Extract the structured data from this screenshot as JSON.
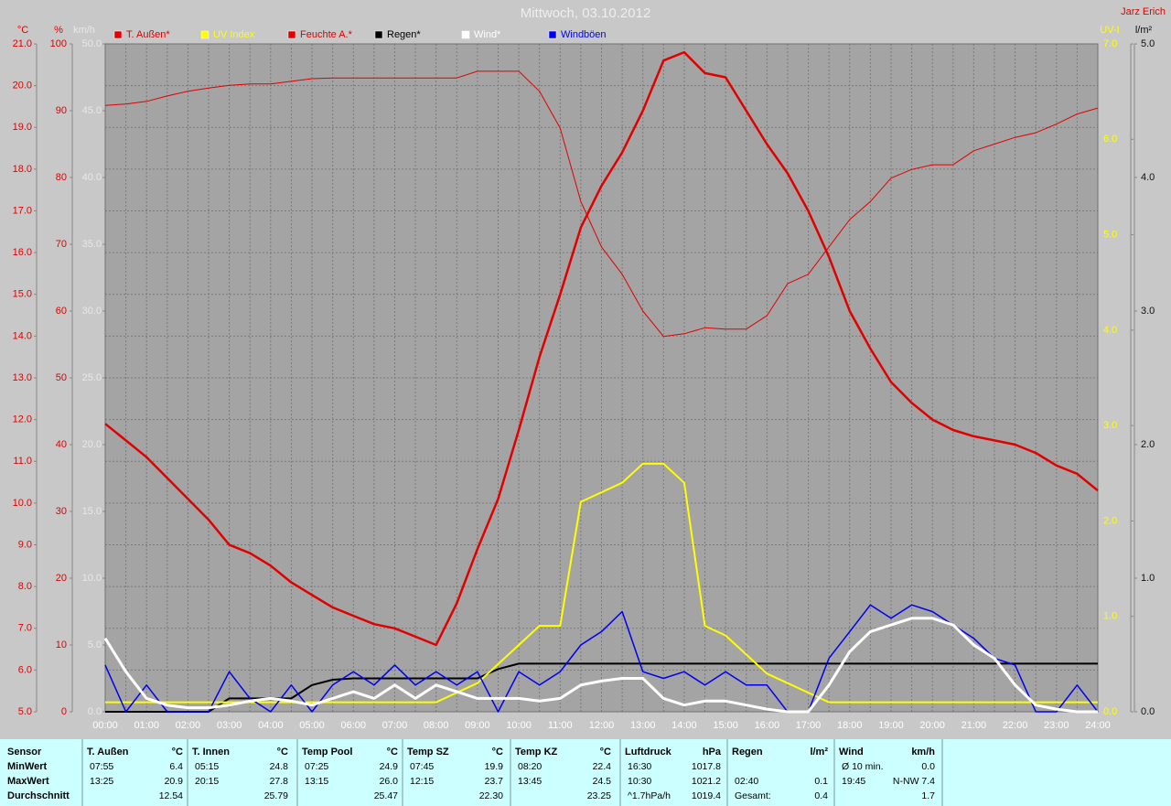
{
  "chart_data": {
    "type": "line",
    "title": "Mittwoch, 03.10.2012",
    "author": "Jarz Erich",
    "grid": true,
    "x": [
      0,
      0.5,
      1,
      1.5,
      2,
      2.5,
      3,
      3.5,
      4,
      4.5,
      5,
      5.5,
      6,
      6.5,
      7,
      7.5,
      8,
      8.5,
      9,
      9.5,
      10,
      10.5,
      11,
      11.5,
      12,
      12.5,
      13,
      13.5,
      14,
      14.5,
      15,
      15.5,
      16,
      16.5,
      17,
      17.5,
      18,
      18.5,
      19,
      19.5,
      20,
      20.5,
      21,
      21.5,
      22,
      22.5,
      23,
      23.5,
      24
    ],
    "xlim": [
      0,
      24
    ],
    "xticks": [
      {
        "value": 0,
        "label": "00:00"
      },
      {
        "value": 1,
        "label": "01:00"
      },
      {
        "value": 2,
        "label": "02:00"
      },
      {
        "value": 3,
        "label": "03:00"
      },
      {
        "value": 4,
        "label": "04:00"
      },
      {
        "value": 5,
        "label": "05:00"
      },
      {
        "value": 6,
        "label": "06:00"
      },
      {
        "value": 7,
        "label": "07:00"
      },
      {
        "value": 8,
        "label": "08:00"
      },
      {
        "value": 9,
        "label": "09:00"
      },
      {
        "value": 10,
        "label": "10:00"
      },
      {
        "value": 11,
        "label": "11:00"
      },
      {
        "value": 12,
        "label": "12:00"
      },
      {
        "value": 13,
        "label": "13:00"
      },
      {
        "value": 14,
        "label": "14:00"
      },
      {
        "value": 15,
        "label": "15:00"
      },
      {
        "value": 16,
        "label": "16:00"
      },
      {
        "value": 17,
        "label": "17:00"
      },
      {
        "value": 18,
        "label": "18:00"
      },
      {
        "value": 19,
        "label": "19:00"
      },
      {
        "value": 20,
        "label": "20:00"
      },
      {
        "value": 21,
        "label": "21:00"
      },
      {
        "value": 22,
        "label": "22:00"
      },
      {
        "value": 23,
        "label": "23:00"
      },
      {
        "value": 24,
        "label": "24:00"
      }
    ],
    "axes": [
      {
        "label": "°C",
        "color": "#e00000",
        "lim": [
          5,
          21
        ],
        "ticks": [
          {
            "value": 5,
            "label": "5.0"
          },
          {
            "value": 6,
            "label": "6.0"
          },
          {
            "value": 7,
            "label": "7.0"
          },
          {
            "value": 8,
            "label": "8.0"
          },
          {
            "value": 9,
            "label": "9.0"
          },
          {
            "value": 10,
            "label": "10.0"
          },
          {
            "value": 11,
            "label": "11.0"
          },
          {
            "value": 12,
            "label": "12.0"
          },
          {
            "value": 13,
            "label": "13.0"
          },
          {
            "value": 14,
            "label": "14.0"
          },
          {
            "value": 15,
            "label": "15.0"
          },
          {
            "value": 16,
            "label": "16.0"
          },
          {
            "value": 17,
            "label": "17.0"
          },
          {
            "value": 18,
            "label": "18.0"
          },
          {
            "value": 19,
            "label": "19.0"
          },
          {
            "value": 20,
            "label": "20.0"
          },
          {
            "value": 21,
            "label": "21.0"
          }
        ]
      },
      {
        "label": "%",
        "color": "#e00000",
        "lim": [
          0,
          100
        ],
        "ticks": [
          0,
          10,
          20,
          30,
          40,
          50,
          60,
          70,
          80,
          90,
          100
        ]
      },
      {
        "label": "km/h",
        "color": "#e8e8e8",
        "lim": [
          0,
          50
        ],
        "ticks": [
          {
            "value": 0,
            "label": "0.0"
          },
          {
            "value": 5,
            "label": "5.0"
          },
          {
            "value": 10,
            "label": "10.0"
          },
          {
            "value": 15,
            "label": "15.0"
          },
          {
            "value": 20,
            "label": "20.0"
          },
          {
            "value": 25,
            "label": "25.0"
          },
          {
            "value": 30,
            "label": "30.0"
          },
          {
            "value": 35,
            "label": "35.0"
          },
          {
            "value": 40,
            "label": "40.0"
          },
          {
            "value": 45,
            "label": "45.0"
          },
          {
            "value": 50,
            "label": "50.0"
          }
        ]
      },
      {
        "label": "UV-I",
        "color": "#ffff00",
        "lim": [
          0,
          7
        ],
        "ticks": [
          {
            "value": 0,
            "label": "0.0"
          },
          {
            "value": 1,
            "label": "1.0"
          },
          {
            "value": 2,
            "label": "2.0"
          },
          {
            "value": 3,
            "label": "3.0"
          },
          {
            "value": 4,
            "label": "4.0"
          },
          {
            "value": 5,
            "label": "5.0"
          },
          {
            "value": 6,
            "label": "6.0"
          },
          {
            "value": 7,
            "label": "7.0"
          }
        ]
      },
      {
        "label": "l/m²",
        "color": "#101010",
        "lim": [
          0,
          5
        ],
        "ticks": [
          {
            "value": 0,
            "label": "0.0"
          },
          {
            "value": 1,
            "label": "1.0"
          },
          {
            "value": 2,
            "label": "2.0"
          },
          {
            "value": 3,
            "label": "3.0"
          },
          {
            "value": 4,
            "label": "4.0"
          },
          {
            "value": 5,
            "label": "5.0"
          }
        ]
      }
    ],
    "series": [
      {
        "name": "T. Außen*",
        "color": "#e00000",
        "axis": 0,
        "width": 2.5,
        "values": [
          11.9,
          11.5,
          11.1,
          10.6,
          10.1,
          9.6,
          9.0,
          8.8,
          8.5,
          8.1,
          7.8,
          7.5,
          7.3,
          7.1,
          7.0,
          6.8,
          6.6,
          7.6,
          8.9,
          10.1,
          11.75,
          13.5,
          15.0,
          16.6,
          17.6,
          18.4,
          19.4,
          20.6,
          20.8,
          20.3,
          20.2,
          19.4,
          18.6,
          17.9,
          17.0,
          15.9,
          14.6,
          13.7,
          12.9,
          12.4,
          12.0,
          11.75,
          11.6,
          11.5,
          11.4,
          11.2,
          10.9,
          10.7,
          10.3
        ]
      },
      {
        "name": "UV Index",
        "color": "#ffff00",
        "axis": 3,
        "width": 2,
        "values": [
          0.1,
          0.1,
          0.1,
          0.1,
          0.1,
          0.1,
          0.1,
          0.1,
          0.1,
          0.1,
          0.1,
          0.1,
          0.1,
          0.1,
          0.1,
          0.1,
          0.1,
          0.2,
          0.3,
          0.5,
          0.7,
          0.9,
          0.9,
          2.2,
          2.3,
          2.4,
          2.6,
          2.6,
          2.4,
          0.9,
          0.8,
          0.6,
          0.4,
          0.3,
          0.2,
          0.1,
          0.1,
          0.1,
          0.1,
          0.1,
          0.1,
          0.1,
          0.1,
          0.1,
          0.1,
          0.1,
          0.1,
          0.1,
          0.1
        ]
      },
      {
        "name": "Feuchte A.*",
        "color": "#e00000",
        "axis": 1,
        "width": 1,
        "values": [
          90.8,
          91.0,
          91.4,
          92.2,
          92.9,
          93.4,
          93.8,
          94.0,
          94.0,
          94.4,
          94.8,
          94.9,
          94.9,
          94.9,
          94.9,
          94.9,
          94.9,
          94.9,
          95.9,
          95.9,
          95.9,
          92.9,
          87.4,
          76.4,
          69.6,
          65.5,
          60.0,
          56.2,
          56.6,
          57.5,
          57.3,
          57.3,
          59.3,
          64.1,
          65.5,
          69.6,
          73.7,
          76.4,
          79.9,
          81.2,
          81.9,
          81.9,
          84.0,
          85.0,
          86.0,
          86.7,
          88.0,
          89.5,
          90.4
        ]
      },
      {
        "name": "Regen*",
        "color": "#000000",
        "axis": 4,
        "width": 2,
        "values": [
          0,
          0,
          0,
          0,
          0,
          0,
          0.1,
          0.1,
          0.1,
          0.1,
          0.2,
          0.24,
          0.25,
          0.25,
          0.25,
          0.25,
          0.25,
          0.25,
          0.25,
          0.32,
          0.36,
          0.36,
          0.36,
          0.36,
          0.36,
          0.36,
          0.36,
          0.36,
          0.36,
          0.36,
          0.36,
          0.36,
          0.36,
          0.36,
          0.36,
          0.36,
          0.36,
          0.36,
          0.36,
          0.36,
          0.36,
          0.36,
          0.36,
          0.36,
          0.36,
          0.36,
          0.36,
          0.36,
          0.36
        ]
      },
      {
        "name": "Wind*",
        "color": "#ffffff",
        "axis": 2,
        "width": 3,
        "values": [
          5.5,
          3,
          1,
          0.5,
          0.3,
          0.3,
          0.5,
          0.8,
          1,
          0.8,
          0.5,
          1,
          1.5,
          1,
          2,
          1,
          2,
          1.5,
          1,
          1,
          1,
          0.8,
          1,
          2,
          2.3,
          2.5,
          2.5,
          1,
          0.5,
          0.8,
          0.8,
          0.5,
          0.2,
          0,
          0,
          2,
          4.5,
          6,
          6.5,
          7,
          7,
          6.5,
          5,
          4,
          2,
          0.5,
          0.2,
          0,
          0
        ]
      },
      {
        "name": "Windböen",
        "color": "#0000ee",
        "axis": 2,
        "width": 1.5,
        "values": [
          3.5,
          0,
          2,
          0,
          0,
          0,
          3,
          1,
          0,
          2,
          0,
          2,
          3,
          2,
          3.5,
          2,
          3,
          2,
          3,
          0,
          3,
          2,
          3,
          5,
          6,
          7.5,
          3,
          2.5,
          3,
          2,
          3,
          2,
          2,
          0,
          0,
          4,
          6,
          8,
          7,
          8,
          7.5,
          6.5,
          5.5,
          4,
          3.5,
          0,
          0,
          2,
          0
        ]
      }
    ]
  },
  "table": {
    "row_labels": [
      "Sensor",
      "MinWert",
      "MaxWert",
      "Durchschnitt"
    ],
    "columns": [
      {
        "name": "T. Außen",
        "unit": "°C",
        "rows": [
          [
            "07:55",
            "6.4"
          ],
          [
            "13:25",
            "20.9"
          ],
          [
            null,
            "12.54"
          ]
        ]
      },
      {
        "name": "T. Innen",
        "unit": "°C",
        "rows": [
          [
            "05:15",
            "24.8"
          ],
          [
            "20:15",
            "27.8"
          ],
          [
            null,
            "25.79"
          ]
        ]
      },
      {
        "name": "Temp Pool",
        "unit": "°C",
        "rows": [
          [
            "07:25",
            "24.9"
          ],
          [
            "13:15",
            "26.0"
          ],
          [
            null,
            "25.47"
          ]
        ]
      },
      {
        "name": "Temp SZ",
        "unit": "°C",
        "rows": [
          [
            "07:45",
            "19.9"
          ],
          [
            "12:15",
            "23.7"
          ],
          [
            null,
            "22.30"
          ]
        ]
      },
      {
        "name": "Temp KZ",
        "unit": "°C",
        "rows": [
          [
            "08:20",
            "22.4"
          ],
          [
            "13:45",
            "24.5"
          ],
          [
            null,
            "23.25"
          ]
        ]
      },
      {
        "name": "Luftdruck",
        "unit": "hPa",
        "rows": [
          [
            "16:30",
            "1017.8"
          ],
          [
            "10:30",
            "1021.2"
          ],
          [
            "^1.7hPa/h",
            "1019.4"
          ]
        ]
      },
      {
        "name": "Regen",
        "unit": "l/m²",
        "rows": [
          [
            null,
            null
          ],
          [
            "02:40",
            "0.1"
          ],
          [
            "Gesamt:",
            "0.4"
          ]
        ]
      },
      {
        "name": "Wind",
        "unit": "km/h",
        "rows": [
          [
            "Ø 10 min.",
            "0.0"
          ],
          [
            "19:45",
            "N-NW 7.4"
          ],
          [
            null,
            "1.7"
          ]
        ]
      }
    ]
  }
}
